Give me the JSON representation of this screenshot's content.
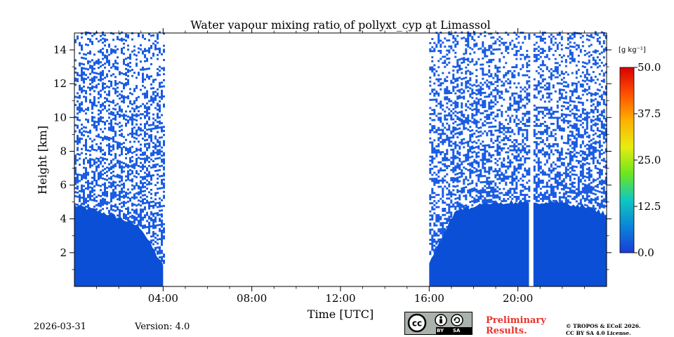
{
  "chart_data": {
    "type": "heatmap",
    "title": "Water vapour mixing ratio of pollyxt_cyp at Limassol",
    "xlabel": "Time [UTC]",
    "ylabel": "Height [km]",
    "xlim_hours": [
      0,
      24
    ],
    "ylim_km": [
      0,
      15
    ],
    "x_ticks": [
      {
        "hour": 4,
        "label": "04:00"
      },
      {
        "hour": 8,
        "label": "08:00"
      },
      {
        "hour": 12,
        "label": "12:00"
      },
      {
        "hour": 16,
        "label": "16:00"
      },
      {
        "hour": 20,
        "label": "20:00"
      }
    ],
    "y_ticks": [
      {
        "value": 2,
        "label": "2"
      },
      {
        "value": 4,
        "label": "4"
      },
      {
        "value": 6,
        "label": "6"
      },
      {
        "value": 8,
        "label": "8"
      },
      {
        "value": 10,
        "label": "10"
      },
      {
        "value": 12,
        "label": "12"
      },
      {
        "value": 14,
        "label": "14"
      }
    ],
    "colorbar": {
      "unit": "[g kg⁻¹]",
      "range": [
        0,
        50
      ],
      "ticks": [
        {
          "value": 0,
          "label": "0.0"
        },
        {
          "value": 12.5,
          "label": "12.5"
        },
        {
          "value": 25,
          "label": "25.0"
        },
        {
          "value": 37.5,
          "label": "37.5"
        },
        {
          "value": 50,
          "label": "50.0"
        }
      ]
    },
    "data_segments": [
      {
        "start_hour": 0,
        "end_hour": 4.0,
        "dense_top_km": [
          4.8,
          4.5,
          4.1,
          3.5,
          1.2
        ]
      },
      {
        "start_hour": 16.0,
        "end_hour": 20.5,
        "dense_top_km": [
          1.5,
          4.4,
          4.9,
          5.0,
          5.0
        ]
      },
      {
        "start_hour": 20.7,
        "end_hour": 24,
        "dense_top_km": [
          5.0,
          5.0,
          4.8,
          4.3
        ]
      }
    ],
    "no_data_ranges_hours": [
      [
        4.0,
        16.0
      ],
      [
        20.5,
        20.7
      ]
    ],
    "dense_layer_value_gkg": 1.5,
    "sparse_upper_value_gkg": 2.0
  },
  "footer": {
    "date": "2026-03-31",
    "version": "Version: 4.0",
    "license_badge": {
      "cc": "cc",
      "by": "BY",
      "sa": "SA"
    },
    "preliminary_line1": "Preliminary",
    "preliminary_line2": "Results.",
    "copyright_line1": "© TROPOS & ECoE 2026.",
    "copyright_line2": "CC BY SA 4.0 License."
  },
  "colors": {
    "dense": "#0b4fd6",
    "sparse": "#1a5ce3",
    "colormap": [
      "#1a3cd8",
      "#0a85d8",
      "#10c8c0",
      "#6ee61e",
      "#e8ec10",
      "#ffb000",
      "#ff5000",
      "#d80000"
    ]
  }
}
